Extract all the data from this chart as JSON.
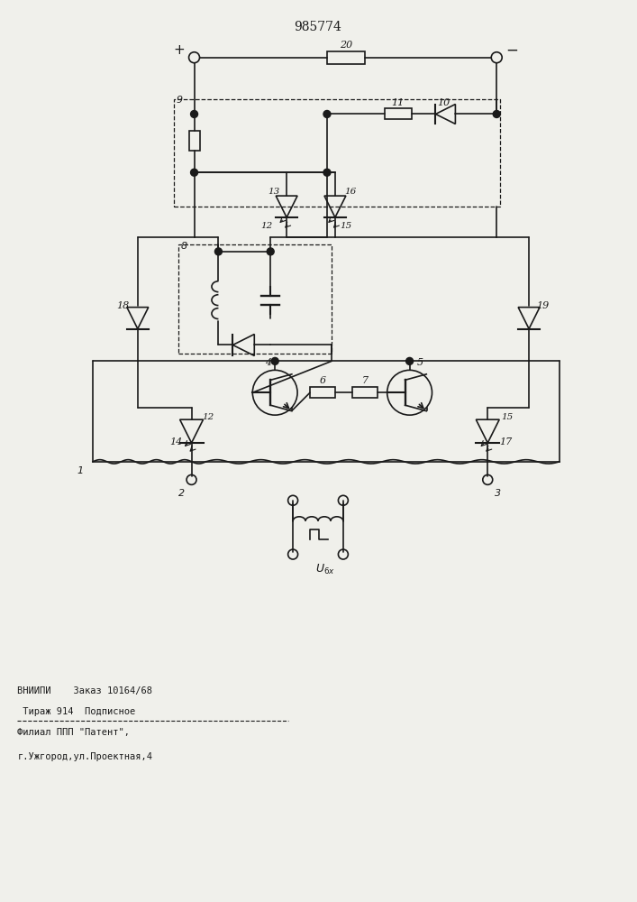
{
  "title": "985774",
  "bg_color": "#f0f0eb",
  "line_color": "#1a1a1a",
  "text_color": "#1a1a1a",
  "footer_text": [
    "ВНИИПИ    Заказ 10164/68",
    " Тираж 914  Подписное",
    "Филиал ППП \"Патент\",",
    "г.Ужгород,ул.Проектная,4"
  ]
}
